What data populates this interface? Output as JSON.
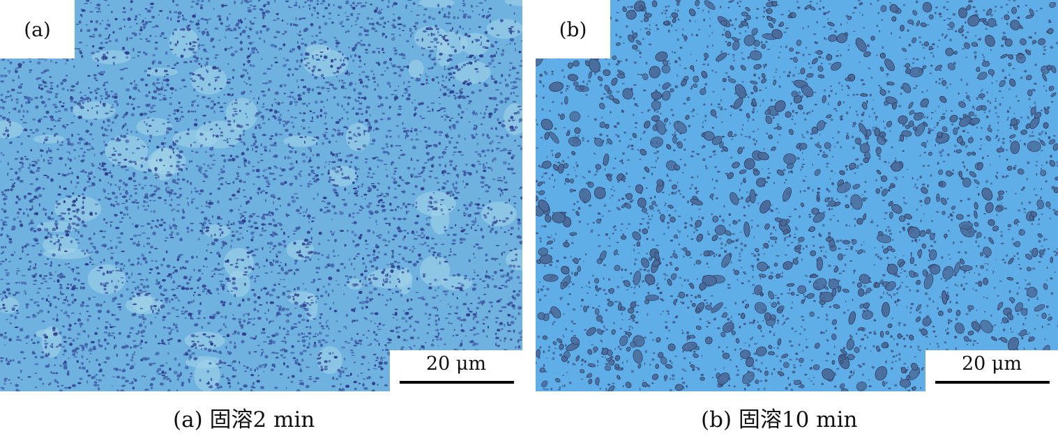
{
  "figure": {
    "panels": [
      {
        "id": "a",
        "label": "(a)",
        "scale_bar": "20 μm",
        "caption": "(a)  固溶2 min",
        "colors": {
          "matrix": "#6fb2e0",
          "matrix_light": "#a6d6ea",
          "particle": "#3f5fa8",
          "particle_dark": "#2e3f8c"
        }
      },
      {
        "id": "b",
        "label": "(b)",
        "scale_bar": "20 μm",
        "caption": "(b)  固溶10 min",
        "colors": {
          "matrix": "#5faee8",
          "particle": "#4a6c9c",
          "particle_edge": "#2f3f63",
          "particle_dark": "#3a4b7a"
        }
      }
    ]
  }
}
